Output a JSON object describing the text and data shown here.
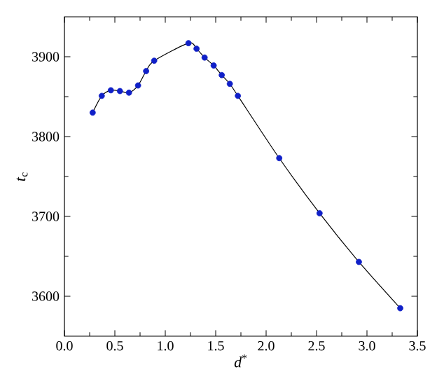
{
  "chart_data": {
    "type": "line",
    "xlabel": "*d*$^{*}$",
    "ylabel": "*t*$_{c}$",
    "xlim": [
      0,
      3.5
    ],
    "ylim": [
      3550,
      3950
    ],
    "xticks": [
      {
        "value": 0,
        "label": "0.0"
      },
      0.5,
      {
        "value": 1,
        "label": "1.0"
      },
      1.5,
      {
        "value": 2,
        "label": "2.0"
      },
      2.5,
      {
        "value": 3,
        "label": "3.0"
      },
      3.5
    ],
    "yticks": [
      3600,
      3700,
      3800,
      3900
    ],
    "grid": false,
    "series": [
      {
        "color": "#000000",
        "marker": "none",
        "x": [
          0.28,
          0.37,
          0.46,
          0.55,
          0.64,
          0.73,
          0.81,
          0.89,
          1.23,
          1.31,
          1.39,
          1.48,
          1.56,
          1.64,
          1.72,
          2.13,
          2.53,
          2.92,
          3.33
        ],
        "values": [
          3830,
          3851,
          3858,
          3857,
          3855,
          3864,
          3882,
          3895,
          3917,
          3910,
          3899,
          3889,
          3877,
          3866,
          3851,
          3773,
          3704,
          3643,
          3585
        ]
      },
      {
        "type": "scatter",
        "color": "#1020c8",
        "marker": "circle",
        "x": [
          0.28,
          0.37,
          0.46,
          0.55,
          0.64,
          0.73,
          0.81,
          0.89,
          1.23,
          1.31,
          1.39,
          1.48,
          1.56,
          1.64,
          1.72,
          2.13,
          2.53,
          2.92,
          3.33
        ],
        "values": [
          3830,
          3851,
          3858,
          3857,
          3855,
          3864,
          3882,
          3895,
          3917,
          3910,
          3899,
          3889,
          3877,
          3866,
          3851,
          3773,
          3704,
          3643,
          3585
        ]
      }
    ]
  }
}
